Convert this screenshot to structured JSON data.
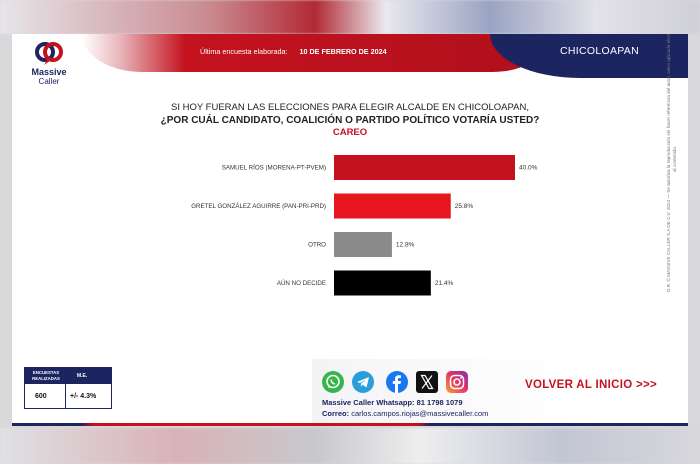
{
  "header": {
    "logo_line1": "Massive",
    "logo_line2": "Caller",
    "updated_label": "Última encuesta elaborada:",
    "updated_date": "10 DE FEBRERO DE 2024",
    "city": "CHICOLOAPAN"
  },
  "question": {
    "line1": "SI HOY FUERAN LAS ELECCIONES PARA ELEGIR ALCALDE EN CHICOLOAPAN,",
    "line2": "¿POR CUÁL CANDIDATO, COALICIÓN O PARTIDO POLÍTICO VOTARÍA USTED?",
    "line3": "CAREO"
  },
  "chart_data": {
    "type": "bar",
    "orientation": "horizontal",
    "categories": [
      "SAMUEL RÍOS (MORENA-PT-PVEM)",
      "GRETEL GONZÁLEZ AGUIRRE (PAN-PRI-PRD)",
      "OTRO",
      "AÚN NO DECIDE"
    ],
    "values": [
      40.0,
      25.8,
      12.8,
      21.4
    ],
    "value_labels": [
      "40.0%",
      "25.8%",
      "12.8%",
      "21.4%"
    ],
    "colors": [
      "#c4121f",
      "#e8141f",
      "#8a8a8a",
      "#000000"
    ],
    "unit": "%",
    "xlim": [
      0,
      40
    ],
    "grid": false,
    "legend": "none"
  },
  "side_note": "D.R. © MASSIVE CALLER S.A DE C.V. 2024 — Se autoriza la reproducción sin hacer referencia del autor, salvo aplicada electoral al contenido.",
  "stats": {
    "h1": "ENCUESTAS REALIZADAS",
    "h2": "M.E.",
    "v1": "600",
    "v2": "+/- 4.3%"
  },
  "footer": {
    "icons": [
      "whatsapp-icon",
      "telegram-icon",
      "facebook-icon",
      "x-icon",
      "instagram-icon"
    ],
    "whatsapp_line": "Massive Caller Whatsapp: 81 1798 1079",
    "mail_label": "Correo:",
    "mail_value": "carlos.campos.riojas@massivecaller.com",
    "back_label": "VOLVER AL INICIO >>>"
  }
}
